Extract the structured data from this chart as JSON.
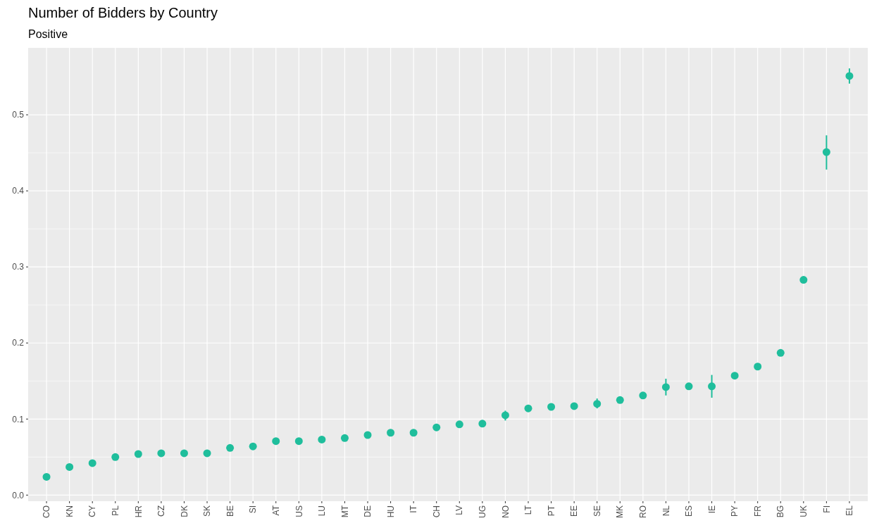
{
  "chart_data": {
    "type": "scatter",
    "title": "Number of Bidders by Country",
    "subtitle": "Positive",
    "categories": [
      "CO",
      "KN",
      "CY",
      "PL",
      "HR",
      "CZ",
      "DK",
      "SK",
      "BE",
      "SI",
      "AT",
      "US",
      "LU",
      "MT",
      "DE",
      "HU",
      "IT",
      "CH",
      "LV",
      "UG",
      "NO",
      "LT",
      "PT",
      "EE",
      "SE",
      "MK",
      "RO",
      "NL",
      "ES",
      "IE",
      "PY",
      "FR",
      "BG",
      "UK",
      "FI",
      "EL"
    ],
    "series": [
      {
        "color": "#1fbe9c",
        "values": [
          0.024,
          0.037,
          0.042,
          0.05,
          0.054,
          0.055,
          0.055,
          0.055,
          0.062,
          0.064,
          0.071,
          0.071,
          0.073,
          0.075,
          0.079,
          0.082,
          0.082,
          0.089,
          0.093,
          0.094,
          0.105,
          0.114,
          0.116,
          0.117,
          0.12,
          0.125,
          0.131,
          0.142,
          0.143,
          0.143,
          0.157,
          0.169,
          0.187,
          0.283,
          0.451,
          0.551
        ],
        "errors": [
          null,
          null,
          null,
          null,
          null,
          null,
          null,
          null,
          null,
          null,
          null,
          null,
          null,
          null,
          null,
          null,
          null,
          null,
          null,
          null,
          [
            0.098,
            0.111
          ],
          null,
          null,
          null,
          [
            0.114,
            0.127
          ],
          null,
          null,
          [
            0.131,
            0.153
          ],
          null,
          [
            0.128,
            0.158
          ],
          null,
          null,
          null,
          null,
          [
            0.428,
            0.473
          ],
          [
            0.541,
            0.561
          ]
        ]
      }
    ],
    "ylim": [
      -0.008,
      0.588
    ],
    "yticks": [
      {
        "value": 0,
        "label": "0.0"
      },
      0.1,
      0.2,
      0.3,
      0.4,
      0.5
    ],
    "grid": true,
    "marker": "circle"
  }
}
